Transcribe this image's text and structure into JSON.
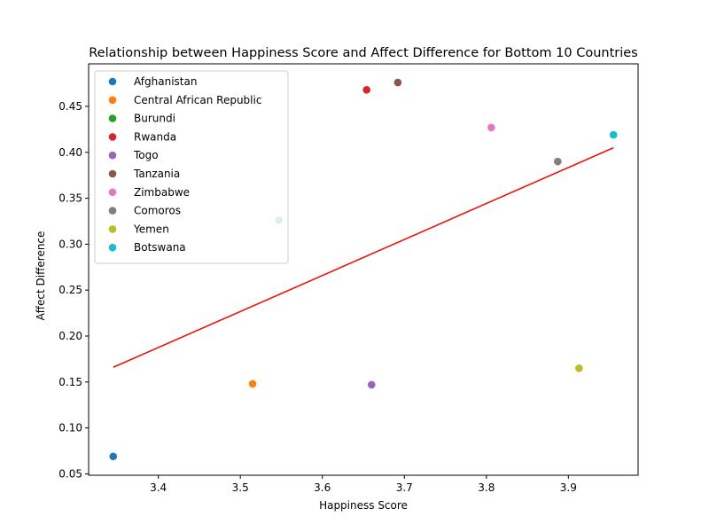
{
  "chart_data": {
    "type": "scatter",
    "title": "Relationship between Happiness Score and Affect Difference for Bottom 10 Countries",
    "xlabel": "Happiness Score",
    "ylabel": "Affect Difference",
    "xlim": [
      3.315,
      3.985
    ],
    "ylim": [
      0.0485,
      0.4963
    ],
    "xticks": [
      "3.4",
      "3.5",
      "3.6",
      "3.7",
      "3.8",
      "3.9"
    ],
    "yticks": [
      "0.05",
      "0.10",
      "0.15",
      "0.20",
      "0.25",
      "0.30",
      "0.35",
      "0.40",
      "0.45"
    ],
    "grid": false,
    "legend_position": "top-left",
    "series": [
      {
        "name": "Afghanistan",
        "color": "#1f77b4",
        "points": [
          {
            "x": 3.345,
            "y": 0.069
          }
        ]
      },
      {
        "name": "Central African Republic",
        "color": "#ff7f0e",
        "points": [
          {
            "x": 3.515,
            "y": 0.148
          }
        ]
      },
      {
        "name": "Burundi",
        "color": "#2ca02c",
        "points": [
          {
            "x": 3.547,
            "y": 0.326
          }
        ]
      },
      {
        "name": "Rwanda",
        "color": "#d62728",
        "points": [
          {
            "x": 3.654,
            "y": 0.468
          }
        ]
      },
      {
        "name": "Togo",
        "color": "#9467bd",
        "points": [
          {
            "x": 3.66,
            "y": 0.147
          }
        ]
      },
      {
        "name": "Tanzania",
        "color": "#8c564b",
        "points": [
          {
            "x": 3.692,
            "y": 0.476
          }
        ]
      },
      {
        "name": "Zimbabwe",
        "color": "#e377c2",
        "points": [
          {
            "x": 3.806,
            "y": 0.427
          }
        ]
      },
      {
        "name": "Comoros",
        "color": "#7f7f7f",
        "points": [
          {
            "x": 3.887,
            "y": 0.39
          }
        ]
      },
      {
        "name": "Yemen",
        "color": "#bcbd22",
        "points": [
          {
            "x": 3.913,
            "y": 0.165
          }
        ]
      },
      {
        "name": "Botswana",
        "color": "#17becf",
        "points": [
          {
            "x": 3.955,
            "y": 0.419
          }
        ]
      }
    ],
    "trendline": {
      "color": "#e8160c",
      "x": [
        3.345,
        3.955
      ],
      "y": [
        0.166,
        0.405
      ]
    }
  }
}
